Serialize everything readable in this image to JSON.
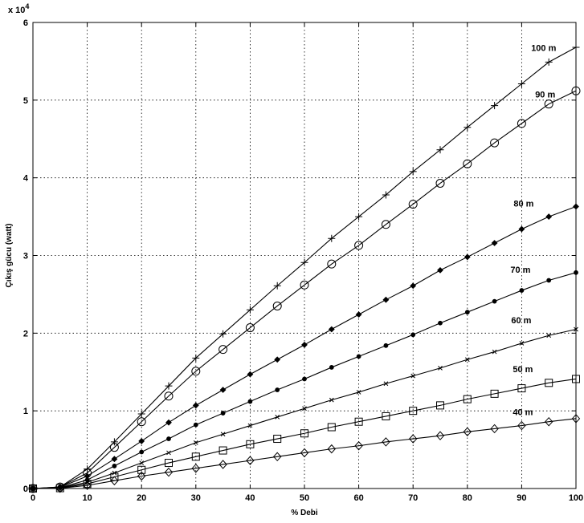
{
  "chart_data": {
    "type": "line",
    "xlabel": "% Debi",
    "ylabel": "Çıkış gücu (watt)",
    "y_exponent_label": "x 10",
    "y_exponent_power": "4",
    "xlim": [
      0,
      100
    ],
    "ylim": [
      0,
      60000
    ],
    "x_ticks": [
      "0",
      "10",
      "20",
      "30",
      "40",
      "50",
      "60",
      "70",
      "80",
      "90",
      "100"
    ],
    "y_ticks": [
      "0",
      "1",
      "2",
      "3",
      "4",
      "5",
      "6"
    ],
    "grid": true,
    "x": [
      0,
      5,
      10,
      15,
      20,
      25,
      30,
      35,
      40,
      45,
      50,
      55,
      60,
      65,
      70,
      75,
      80,
      85,
      90,
      95,
      100
    ],
    "series": [
      {
        "name": "100 m",
        "marker": "plus",
        "values": [
          0,
          200,
          2500,
          6000,
          9600,
          13200,
          16800,
          19900,
          23000,
          26100,
          29100,
          32200,
          35000,
          37800,
          40800,
          43600,
          46500,
          49300,
          52100,
          54900,
          56800
        ]
      },
      {
        "name": "90 m",
        "marker": "circle",
        "values": [
          0,
          200,
          2000,
          5300,
          8600,
          11900,
          15100,
          17900,
          20700,
          23500,
          26200,
          28900,
          31300,
          34000,
          36600,
          39300,
          41800,
          44500,
          47000,
          49500,
          51200
        ]
      },
      {
        "name": "80 m",
        "marker": "diamond-filled",
        "values": [
          0,
          150,
          1600,
          3800,
          6100,
          8500,
          10700,
          12700,
          14700,
          16600,
          18500,
          20500,
          22400,
          24300,
          26100,
          28100,
          29800,
          31600,
          33400,
          35000,
          36300
        ]
      },
      {
        "name": "70 m",
        "marker": "dot",
        "values": [
          0,
          100,
          1100,
          2900,
          4700,
          6400,
          8200,
          9700,
          11200,
          12700,
          14100,
          15600,
          17000,
          18400,
          19800,
          21300,
          22700,
          24100,
          25500,
          26800,
          27800
        ]
      },
      {
        "name": "60 m",
        "marker": "x",
        "values": [
          0,
          80,
          800,
          2000,
          3300,
          4600,
          5900,
          7000,
          8100,
          9200,
          10300,
          11400,
          12400,
          13500,
          14500,
          15500,
          16600,
          17600,
          18700,
          19700,
          20500
        ]
      },
      {
        "name": "50 m",
        "marker": "square",
        "values": [
          0,
          50,
          600,
          1500,
          2400,
          3300,
          4100,
          4900,
          5700,
          6400,
          7100,
          7900,
          8600,
          9300,
          10000,
          10700,
          11500,
          12200,
          12900,
          13600,
          14100
        ]
      },
      {
        "name": "40 m",
        "marker": "diamond",
        "values": [
          0,
          30,
          400,
          1000,
          1600,
          2100,
          2600,
          3100,
          3600,
          4100,
          4600,
          5100,
          5500,
          6000,
          6400,
          6800,
          7300,
          7700,
          8100,
          8600,
          9000
        ]
      }
    ]
  }
}
